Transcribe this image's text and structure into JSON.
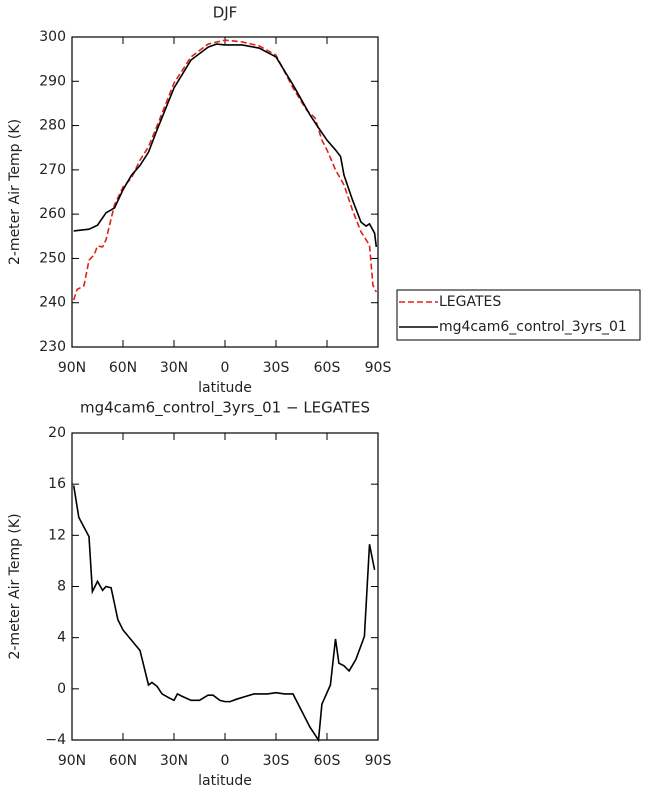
{
  "chart_data": [
    {
      "type": "line",
      "title": "DJF",
      "xlabel": "latitude",
      "ylabel": "2-meter Air Temp (K)",
      "xlim": [
        90,
        -90
      ],
      "xticks": [
        {
          "value": 90,
          "label": "90N"
        },
        {
          "value": 60,
          "label": "60N"
        },
        {
          "value": 30,
          "label": "30N"
        },
        0,
        {
          "value": -30,
          "label": "30S"
        },
        {
          "value": -60,
          "label": "60S"
        },
        {
          "value": -90,
          "label": "90S"
        }
      ],
      "ylim": [
        230,
        300
      ],
      "yticks": [
        230,
        240,
        250,
        260,
        270,
        280,
        290,
        300
      ],
      "legend": "outside-right",
      "series": [
        {
          "name": "LEGATES",
          "color": "#e0201b",
          "line_style": "dashed",
          "x": [
            89,
            87,
            83,
            80,
            77,
            75,
            72,
            70,
            65,
            60,
            55,
            50,
            45,
            40,
            30,
            20,
            10,
            0,
            -10,
            -20,
            -30,
            -40,
            -48,
            -53,
            -57,
            -60,
            -65,
            -70,
            -75,
            -80,
            -85,
            -87,
            -89
          ],
          "values": [
            240.6,
            243,
            243.8,
            249.6,
            250.8,
            252.8,
            252.6,
            254.2,
            262.1,
            266.1,
            268.2,
            272.2,
            275.2,
            279.9,
            289.6,
            295.5,
            298.4,
            299.3,
            298.9,
            298,
            295.9,
            288.5,
            283.5,
            281.7,
            276.7,
            274.5,
            270,
            266.6,
            260.9,
            256,
            253,
            244,
            242.4
          ]
        },
        {
          "name": "mg4cam6_control_3yrs_01",
          "color": "#000000",
          "line_style": "solid",
          "x": [
            89,
            80,
            75,
            70,
            65,
            60,
            55,
            50,
            45,
            40,
            30,
            20,
            10,
            5,
            0,
            -10,
            -20,
            -30,
            -40,
            -50,
            -55,
            -60,
            -65,
            -68,
            -70,
            -75,
            -80,
            -83,
            -85,
            -88,
            -89
          ],
          "values": [
            256.2,
            256.6,
            257.5,
            260.3,
            261.4,
            265.5,
            268.8,
            271,
            274,
            279,
            288.5,
            294.8,
            297.7,
            298.4,
            298.2,
            298.2,
            297.5,
            295.5,
            289.2,
            282.4,
            279.5,
            276.7,
            274.5,
            273,
            268.8,
            263.2,
            258.2,
            257.3,
            257.8,
            255.7,
            252.6
          ]
        }
      ]
    },
    {
      "type": "line",
      "title": "mg4cam6_control_3yrs_01 − LEGATES",
      "xlabel": "latitude",
      "ylabel": "2-meter Air Temp (K)",
      "xlim": [
        90,
        -90
      ],
      "xticks": [
        {
          "value": 90,
          "label": "90N"
        },
        {
          "value": 60,
          "label": "60N"
        },
        {
          "value": 30,
          "label": "30N"
        },
        0,
        {
          "value": -30,
          "label": "30S"
        },
        {
          "value": -60,
          "label": "60S"
        },
        {
          "value": -90,
          "label": "90S"
        }
      ],
      "ylim": [
        -4,
        20
      ],
      "yticks": [
        {
          "value": -4,
          "label": "−4"
        },
        0,
        4,
        8,
        12,
        16,
        20
      ],
      "series": [
        {
          "color": "#000000",
          "line_style": "solid",
          "x": [
            89,
            86,
            80,
            78,
            75,
            72,
            70,
            67,
            63,
            60,
            55,
            50,
            45,
            43,
            40,
            37,
            33,
            30,
            28,
            25,
            20,
            15,
            10,
            7,
            3,
            0,
            -3,
            -7,
            -12,
            -17,
            -25,
            -30,
            -35,
            -40,
            -45,
            -50,
            -53,
            -55,
            -57,
            -62,
            -65,
            -67,
            -70,
            -73,
            -77,
            -82,
            -85,
            -88
          ],
          "values": [
            15.9,
            13.4,
            11.9,
            7.6,
            8.4,
            7.7,
            8,
            7.9,
            5.4,
            4.6,
            3.8,
            3,
            0.3,
            0.5,
            0.2,
            -0.4,
            -0.7,
            -0.9,
            -0.4,
            -0.6,
            -0.9,
            -0.9,
            -0.5,
            -0.5,
            -0.9,
            -1.0,
            -1.0,
            -0.8,
            -0.6,
            -0.4,
            -0.4,
            -0.3,
            -0.4,
            -0.4,
            -1.7,
            -3,
            -3.6,
            -4.0,
            -1.2,
            0.3,
            3.9,
            2,
            1.8,
            1.4,
            2.3,
            4.1,
            11.3,
            9.3
          ]
        }
      ]
    }
  ]
}
